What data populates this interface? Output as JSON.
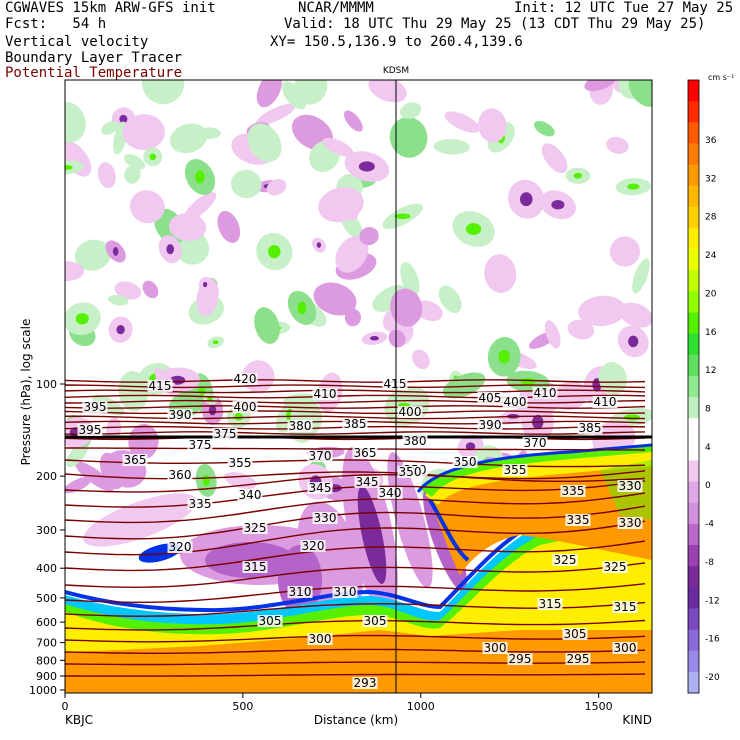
{
  "header": {
    "left_line1": "CGWAVES 15km ARW-GFS init",
    "left_line2": "Fcst:   54 h",
    "field1": "Vertical velocity",
    "field2": "Boundary Layer Tracer",
    "field3": "Potential Temperature",
    "center_top": "NCAR/MMMM",
    "init": "Init: 12 UTC Tue 27 May 25",
    "valid": "Valid: 18 UTC Thu 29 May 25 (13 CDT Thu 29 May 25)",
    "xy": "XY= 150.5,136.9 to 260.4,139.6",
    "station_marker": "KDSM",
    "left_station": "KBJC",
    "right_station": "KIND"
  },
  "colors": {
    "theta_contour": "#7a0000",
    "field3_text": "#7a0000",
    "pink_light": "#f0c8f0",
    "pink_mid": "#dc9ae0",
    "purple_mid": "#b464c8",
    "purple_dark": "#7a2a9a",
    "green_light": "#c8f0c8",
    "green_mid": "#8ce08c",
    "orange": "#ff9900",
    "yellow": "#ffee00",
    "blue": "#0032e6",
    "cyan": "#00c8ff"
  },
  "chart_data": {
    "type": "heatmap",
    "xlabel": "Distance (km)",
    "ylabel": "Pressure (hPa), log scale",
    "x_ticks": [
      0,
      500,
      1000,
      1500
    ],
    "xlim": [
      0,
      1650
    ],
    "y_ticks": [
      100,
      200,
      300,
      400,
      500,
      600,
      700,
      800,
      900,
      1000
    ],
    "y_log_scale": true,
    "station_marker_x_km": 940,
    "colorbar": {
      "units": "cm s⁻¹",
      "labels": [
        "36",
        "32",
        "28",
        "24",
        "20",
        "16",
        "12",
        "8",
        "4",
        "0",
        "-4",
        "-8",
        "-12",
        "-16",
        "-20"
      ],
      "colors": [
        "#ff0000",
        "#ff2a00",
        "#ff5a00",
        "#ff7a00",
        "#ff9a00",
        "#ffb800",
        "#ffd000",
        "#ffee00",
        "#e8ff00",
        "#c0ff00",
        "#90ff00",
        "#55f000",
        "#30e030",
        "#60e060",
        "#90e890",
        "#c0f0c0",
        "#ffffff",
        "#ffffff",
        "#f0c8f0",
        "#e0a8e8",
        "#d090dc",
        "#b868c8",
        "#9a40b0",
        "#7a2a9a",
        "#6a2aa0",
        "#7a4ac0",
        "#8a6ad8",
        "#9a8ae8",
        "#aab0f0"
      ]
    },
    "theta_contour_labels": [
      "415",
      "420",
      "415",
      "410",
      "395",
      "390",
      "400",
      "410",
      "405",
      "400",
      "410",
      "400",
      "395",
      "375",
      "380",
      "385",
      "390",
      "385",
      "380",
      "375",
      "370",
      "370",
      "365",
      "365",
      "355",
      "360",
      "350",
      "350",
      "355",
      "340",
      "345",
      "345",
      "340",
      "335",
      "330",
      "325",
      "320",
      "320",
      "315",
      "310",
      "310",
      "305",
      "305",
      "300",
      "295",
      "295",
      "293",
      "330",
      "335",
      "335",
      "330",
      "350",
      "325",
      "325",
      "315",
      "315",
      "305",
      "300",
      "300"
    ]
  }
}
